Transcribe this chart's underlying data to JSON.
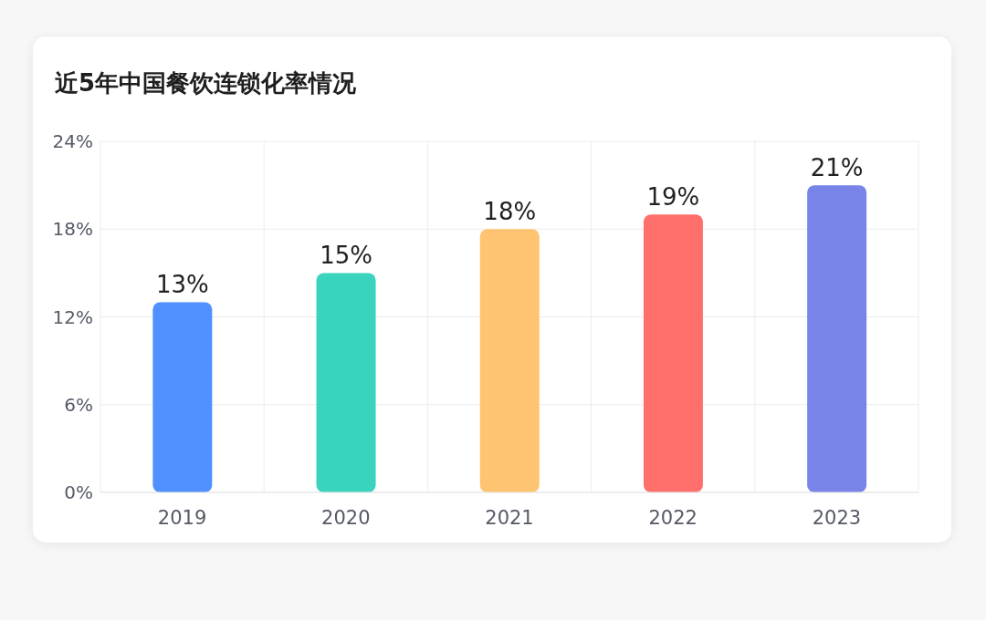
{
  "chart_data": {
    "type": "bar",
    "title": "近5年中国餐饮连锁化率情况",
    "categories": [
      "2019",
      "2020",
      "2021",
      "2022",
      "2023"
    ],
    "values": [
      13,
      15,
      18,
      19,
      21
    ],
    "colors": [
      "#5091ff",
      "#3ad3be",
      "#ffc472",
      "#ff706c",
      "#7884e8"
    ],
    "value_labels": [
      "13%",
      "15%",
      "18%",
      "19%",
      "21%"
    ],
    "ylim": [
      0,
      24
    ],
    "yticks": [
      {
        "value": 0,
        "label": "0%"
      },
      {
        "value": 6,
        "label": "6%"
      },
      {
        "value": 12,
        "label": "12%"
      },
      {
        "value": 18,
        "label": "18%"
      },
      {
        "value": 24,
        "label": "24%"
      }
    ],
    "grid": true
  }
}
